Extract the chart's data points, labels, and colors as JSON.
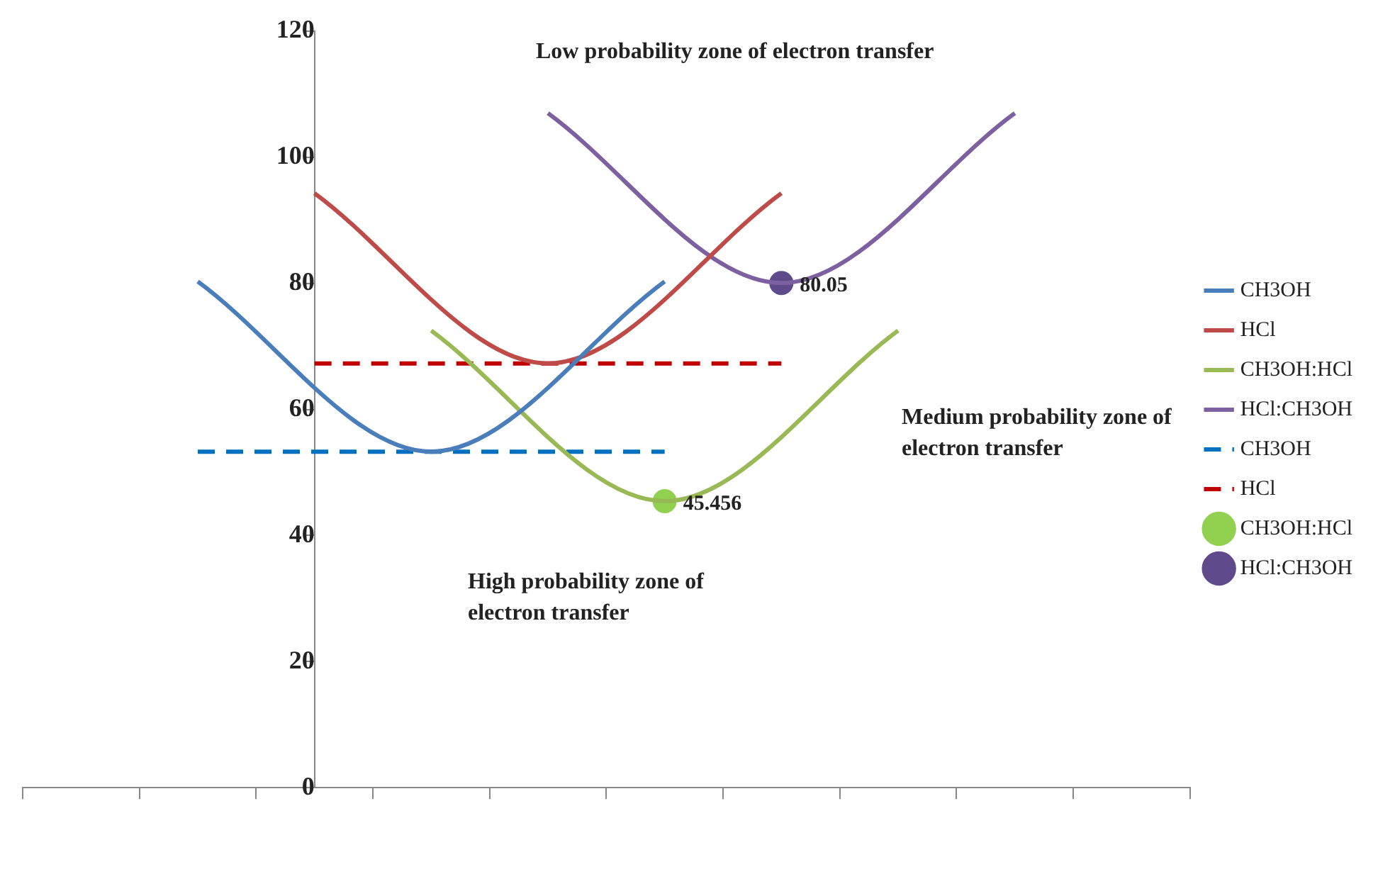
{
  "chart_data": {
    "type": "line",
    "categories": [
      null,
      null,
      null,
      null,
      null,
      null,
      null,
      null,
      null,
      null
    ],
    "ylim": [
      0,
      120
    ],
    "yticks": [
      0,
      20,
      40,
      60,
      80,
      100,
      120
    ],
    "grid": false,
    "legend": "right",
    "marker": "none",
    "series": [
      {
        "name": "CH3OH",
        "color": "#4a7ebb",
        "line_style": "solid",
        "values": [
          null,
          80.3,
          null,
          53.3,
          null,
          80.3,
          null,
          null,
          null,
          null
        ]
      },
      {
        "name": "HCl",
        "color": "#be4b48",
        "line_style": "solid",
        "values": [
          null,
          null,
          94.3,
          null,
          67.3,
          null,
          94.3,
          null,
          null,
          null
        ]
      },
      {
        "name": "CH3OH:HCl",
        "color": "#98b954",
        "line_style": "solid",
        "values": [
          null,
          null,
          null,
          72.5,
          null,
          45.456,
          null,
          72.5,
          null,
          null
        ]
      },
      {
        "name": "HCl:CH3OH",
        "color": "#7d60a0",
        "line_style": "solid",
        "values": [
          null,
          null,
          null,
          null,
          107,
          null,
          80.05,
          null,
          107,
          null
        ]
      },
      {
        "name": "CH3OH",
        "color": "#0070c0",
        "line_style": "dashed",
        "values": [
          null,
          53.3,
          53.3,
          53.3,
          53.3,
          53.3,
          null,
          null,
          null,
          null
        ]
      },
      {
        "name": "HCl",
        "color": "#c00000",
        "line_style": "dashed",
        "values": [
          null,
          null,
          67.3,
          67.3,
          67.3,
          67.3,
          67.3,
          null,
          null,
          null
        ]
      },
      {
        "name": "CH3OH:HCl",
        "type": "scatter",
        "marker": "circle",
        "color": "#92d050",
        "values": [
          null,
          null,
          null,
          null,
          null,
          45.456,
          null,
          null,
          null,
          null
        ],
        "value_labels": [
          null,
          null,
          null,
          null,
          null,
          "45.456",
          null,
          null,
          null,
          null
        ]
      },
      {
        "name": "HCl:CH3OH",
        "type": "scatter",
        "marker": "circle",
        "color": "#5f4b8b",
        "values": [
          null,
          null,
          null,
          null,
          null,
          null,
          80.05,
          null,
          null,
          null
        ],
        "value_labels": [
          null,
          null,
          null,
          null,
          null,
          null,
          "80.05",
          null,
          null,
          null
        ]
      }
    ],
    "annotations": [
      "Low probability zone of electron transfer",
      "Medium probability zone of electron transfer",
      "High probability zone of electron transfer"
    ]
  }
}
